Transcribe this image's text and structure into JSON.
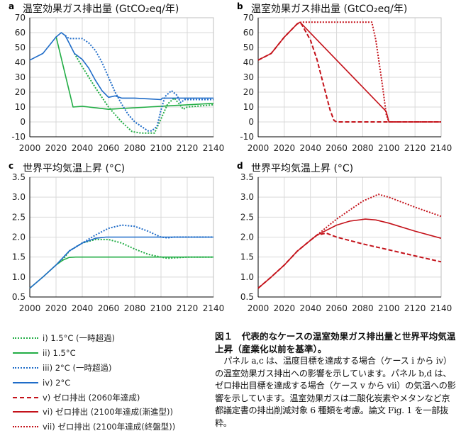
{
  "colors": {
    "green": "#22ad45",
    "blue": "#1f6cc8",
    "red": "#c4121a",
    "grid": "#d9d9d9"
  },
  "chart_data": [
    {
      "panel": "a",
      "type": "line",
      "title": "温室効果ガス排出量 (GtCO₂eq/年)",
      "xlim": [
        2000,
        2140
      ],
      "ylim": [
        -10,
        70
      ],
      "xticks": [
        2000,
        2020,
        2040,
        2060,
        2080,
        2100,
        2120,
        2140
      ],
      "yticks": [
        -10,
        0,
        10,
        20,
        30,
        40,
        50,
        60,
        70
      ],
      "grid": true,
      "series": [
        {
          "name": "i) 1.5°C (一時超過)",
          "color": "green",
          "style": "dotted",
          "points": [
            [
              2034,
              46
            ],
            [
              2040,
              37
            ],
            [
              2050,
              23
            ],
            [
              2060,
              10
            ],
            [
              2070,
              0
            ],
            [
              2078,
              -6.5
            ],
            [
              2085,
              -7.5
            ],
            [
              2095,
              -7.5
            ],
            [
              2100,
              2
            ],
            [
              2105,
              12
            ],
            [
              2110,
              16
            ],
            [
              2114,
              12
            ],
            [
              2117,
              8.5
            ],
            [
              2120,
              10
            ],
            [
              2140,
              11.5
            ]
          ]
        },
        {
          "name": "ii) 1.5°C",
          "color": "green",
          "style": "solid",
          "points": [
            [
              2020,
              57.5
            ],
            [
              2033,
              10
            ],
            [
              2040,
              10.5
            ],
            [
              2045,
              10
            ],
            [
              2050,
              9.5
            ],
            [
              2060,
              8.5
            ],
            [
              2070,
              9
            ],
            [
              2080,
              9.5
            ],
            [
              2090,
              10
            ],
            [
              2100,
              10.5
            ],
            [
              2140,
              12.5
            ]
          ]
        },
        {
          "name": "iii) 2°C (一時超過)",
          "color": "blue",
          "style": "dotted",
          "points": [
            [
              2027,
              58
            ],
            [
              2030,
              56
            ],
            [
              2035,
              56
            ],
            [
              2040,
              56
            ],
            [
              2045,
              53
            ],
            [
              2050,
              48
            ],
            [
              2055,
              40
            ],
            [
              2060,
              30
            ],
            [
              2065,
              20
            ],
            [
              2070,
              12
            ],
            [
              2075,
              5
            ],
            [
              2080,
              0
            ],
            [
              2085,
              -3
            ],
            [
              2090,
              -6
            ],
            [
              2093,
              -6
            ],
            [
              2097,
              -3
            ],
            [
              2100,
              8
            ],
            [
              2103,
              17
            ],
            [
              2108,
              21
            ],
            [
              2112,
              18
            ],
            [
              2115,
              13
            ],
            [
              2118,
              15
            ],
            [
              2140,
              15
            ]
          ]
        },
        {
          "name": "iv) 2°C",
          "color": "blue",
          "style": "solid",
          "points": [
            [
              2000,
              41.5
            ],
            [
              2010,
              46
            ],
            [
              2020,
              57
            ],
            [
              2024,
              60
            ],
            [
              2027,
              58
            ],
            [
              2030,
              53
            ],
            [
              2034,
              46
            ],
            [
              2040,
              42
            ],
            [
              2045,
              36
            ],
            [
              2050,
              28
            ],
            [
              2055,
              21
            ],
            [
              2060,
              16.5
            ],
            [
              2065,
              17.5
            ],
            [
              2070,
              16
            ],
            [
              2080,
              16
            ],
            [
              2090,
              15.5
            ],
            [
              2100,
              15
            ],
            [
              2101,
              16
            ],
            [
              2140,
              16
            ]
          ]
        }
      ]
    },
    {
      "panel": "b",
      "type": "line",
      "title": "温室効果ガス排出量 (GtCO₂eq/年)",
      "xlim": [
        2000,
        2140
      ],
      "ylim": [
        -10,
        70
      ],
      "xticks": [
        2000,
        2020,
        2040,
        2060,
        2080,
        2100,
        2120,
        2140
      ],
      "yticks": [
        -10,
        0,
        10,
        20,
        30,
        40,
        50,
        60,
        70
      ],
      "grid": true,
      "series": [
        {
          "name": "v) ゼロ排出 (2060年達成)",
          "color": "red",
          "style": "dashed",
          "points": [
            [
              2000,
              41.5
            ],
            [
              2010,
              46
            ],
            [
              2020,
              57
            ],
            [
              2030,
              66
            ],
            [
              2033,
              66
            ],
            [
              2040,
              55
            ],
            [
              2045,
              42
            ],
            [
              2050,
              25
            ],
            [
              2055,
              8
            ],
            [
              2058,
              1
            ],
            [
              2060,
              0
            ],
            [
              2140,
              0
            ]
          ]
        },
        {
          "name": "vi) ゼロ排出 (2100年達成(漸進型))",
          "color": "red",
          "style": "solid",
          "points": [
            [
              2000,
              41.5
            ],
            [
              2010,
              46
            ],
            [
              2020,
              57
            ],
            [
              2030,
              66
            ],
            [
              2032,
              67
            ],
            [
              2098,
              7
            ],
            [
              2100,
              0
            ],
            [
              2140,
              0
            ]
          ]
        },
        {
          "name": "vii) ゼロ排出 (2100年達成(終盤型))",
          "color": "red",
          "style": "dotted",
          "points": [
            [
              2030,
              66
            ],
            [
              2033,
              67
            ],
            [
              2087,
              67
            ],
            [
              2090,
              55
            ],
            [
              2095,
              25
            ],
            [
              2098,
              5
            ],
            [
              2100,
              0
            ],
            [
              2140,
              0
            ]
          ]
        }
      ]
    },
    {
      "panel": "c",
      "type": "line",
      "title": "世界平均気温上昇 (°C)",
      "xlim": [
        2000,
        2140
      ],
      "ylim": [
        0.5,
        3.5
      ],
      "xticks": [
        2000,
        2020,
        2040,
        2060,
        2080,
        2100,
        2120,
        2140
      ],
      "yticks": [
        0.5,
        1.0,
        1.5,
        2.0,
        2.5,
        3.0,
        3.5
      ],
      "grid": true,
      "series": [
        {
          "name": "i) 1.5°C (一時超過)",
          "color": "green",
          "style": "dotted",
          "points": [
            [
              2025,
              1.42
            ],
            [
              2030,
              1.65
            ],
            [
              2040,
              1.85
            ],
            [
              2050,
              1.94
            ],
            [
              2060,
              1.94
            ],
            [
              2070,
              1.85
            ],
            [
              2080,
              1.7
            ],
            [
              2090,
              1.57
            ],
            [
              2100,
              1.5
            ],
            [
              2105,
              1.47
            ],
            [
              2110,
              1.48
            ],
            [
              2120,
              1.5
            ],
            [
              2140,
              1.5
            ]
          ]
        },
        {
          "name": "ii) 1.5°C",
          "color": "green",
          "style": "solid",
          "points": [
            [
              2000,
              0.72
            ],
            [
              2010,
              1.0
            ],
            [
              2020,
              1.3
            ],
            [
              2025,
              1.42
            ],
            [
              2030,
              1.49
            ],
            [
              2035,
              1.5
            ],
            [
              2140,
              1.5
            ]
          ]
        },
        {
          "name": "iii) 2°C (一時超過)",
          "color": "blue",
          "style": "dotted",
          "points": [
            [
              2030,
              1.65
            ],
            [
              2040,
              1.85
            ],
            [
              2050,
              2.05
            ],
            [
              2060,
              2.22
            ],
            [
              2070,
              2.3
            ],
            [
              2080,
              2.27
            ],
            [
              2090,
              2.15
            ],
            [
              2100,
              2.0
            ],
            [
              2105,
              1.98
            ],
            [
              2110,
              2.0
            ],
            [
              2140,
              2.0
            ]
          ]
        },
        {
          "name": "iv) 2°C",
          "color": "blue",
          "style": "solid",
          "points": [
            [
              2000,
              0.72
            ],
            [
              2010,
              1.0
            ],
            [
              2020,
              1.3
            ],
            [
              2030,
              1.65
            ],
            [
              2040,
              1.85
            ],
            [
              2050,
              1.97
            ],
            [
              2058,
              2.0
            ],
            [
              2140,
              2.0
            ]
          ]
        }
      ]
    },
    {
      "panel": "d",
      "type": "line",
      "title": "世界平均気温上昇 (°C)",
      "xlim": [
        2000,
        2140
      ],
      "ylim": [
        0.5,
        3.5
      ],
      "xticks": [
        2000,
        2020,
        2040,
        2060,
        2080,
        2100,
        2120,
        2140
      ],
      "yticks": [
        0.5,
        1.0,
        1.5,
        2.0,
        2.5,
        3.0,
        3.5
      ],
      "grid": true,
      "series": [
        {
          "name": "v) ゼロ排出 (2060年達成)",
          "color": "red",
          "style": "dashed",
          "points": [
            [
              2000,
              0.72
            ],
            [
              2010,
              1.0
            ],
            [
              2020,
              1.3
            ],
            [
              2030,
              1.65
            ],
            [
              2040,
              1.92
            ],
            [
              2045,
              2.05
            ],
            [
              2052,
              2.1
            ],
            [
              2060,
              2.0
            ],
            [
              2080,
              1.83
            ],
            [
              2100,
              1.68
            ],
            [
              2120,
              1.53
            ],
            [
              2140,
              1.38
            ]
          ]
        },
        {
          "name": "vi) ゼロ排出 (2100年達成(漸進型))",
          "color": "red",
          "style": "solid",
          "points": [
            [
              2000,
              0.72
            ],
            [
              2010,
              1.0
            ],
            [
              2020,
              1.3
            ],
            [
              2030,
              1.65
            ],
            [
              2040,
              1.92
            ],
            [
              2045,
              2.05
            ],
            [
              2060,
              2.3
            ],
            [
              2070,
              2.4
            ],
            [
              2082,
              2.45
            ],
            [
              2090,
              2.43
            ],
            [
              2100,
              2.35
            ],
            [
              2120,
              2.15
            ],
            [
              2140,
              1.97
            ]
          ]
        },
        {
          "name": "vii) ゼロ排出 (2100年達成(終盤型))",
          "color": "red",
          "style": "dotted",
          "points": [
            [
              2040,
              1.92
            ],
            [
              2045,
              2.05
            ],
            [
              2060,
              2.45
            ],
            [
              2080,
              2.9
            ],
            [
              2092,
              3.07
            ],
            [
              2100,
              3.0
            ],
            [
              2120,
              2.75
            ],
            [
              2140,
              2.52
            ]
          ]
        }
      ]
    }
  ],
  "legend": [
    {
      "label": "i) 1.5°C (一時超過)",
      "color": "green",
      "style": "dotted"
    },
    {
      "label": "ii) 1.5°C",
      "color": "green",
      "style": "solid"
    },
    {
      "label": "iii) 2°C (一時超過)",
      "color": "blue",
      "style": "dotted"
    },
    {
      "label": "iv) 2°C",
      "color": "blue",
      "style": "solid"
    },
    {
      "label": "v) ゼロ排出 (2060年達成)",
      "color": "red",
      "style": "dashed"
    },
    {
      "label": "vi) ゼロ排出 (2100年達成(漸進型))",
      "color": "red",
      "style": "solid"
    },
    {
      "label": "vii) ゼロ排出 (2100年達成(終盤型))",
      "color": "red",
      "style": "dotted"
    }
  ],
  "caption": {
    "title": "図１　代表的なケースの温室効果ガス排出量と世界平均気温上昇（産業化以前を基準）。",
    "body": "パネル a,c は、温度目標を達成する場合（ケース i から iv）の温室効果ガス排出への影響を示しています。パネル b,d は、ゼロ排出目標を達成する場合（ケース v から vii）の気温への影響を示しています。温室効果ガスは二酸化炭素やメタンなど京都議定書の排出削減対象 6 種類を考慮。論文 Fig. 1 を一部抜粋。"
  }
}
